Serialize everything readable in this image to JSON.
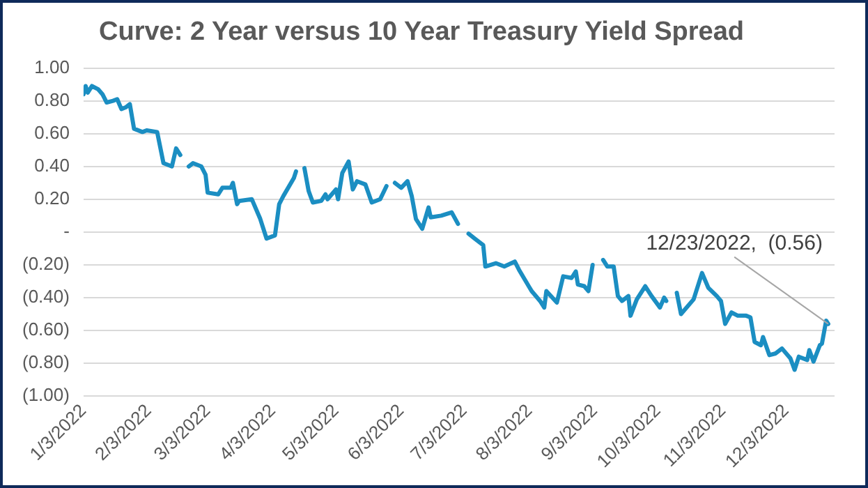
{
  "chart_data": {
    "type": "line",
    "title": "Curve: 2 Year versus 10 Year Treasury Yield Spread",
    "x": [
      "2022-01-03",
      "2022-01-04",
      "2022-01-05",
      "2022-01-07",
      "2022-01-10",
      "2022-01-12",
      "2022-01-14",
      "2022-01-17",
      "2022-01-19",
      "2022-01-21",
      "2022-01-23",
      "2022-01-25",
      "2022-01-27",
      "2022-01-31",
      "2022-02-02",
      "2022-02-07",
      "2022-02-10",
      "2022-02-14",
      "2022-02-16",
      "2022-02-18",
      "2022-02-21",
      "2022-02-22",
      "2022-02-24",
      "2022-02-28",
      "2022-03-02",
      "2022-03-03",
      "2022-03-08",
      "2022-03-10",
      "2022-03-14",
      "2022-03-15",
      "2022-03-17",
      "2022-03-18",
      "2022-03-24",
      "2022-03-28",
      "2022-03-31",
      "2022-04-04",
      "2022-04-06",
      "2022-04-08",
      "2022-04-13",
      "2022-04-14",
      "2022-04-15",
      "2022-04-18",
      "2022-04-20",
      "2022-04-22",
      "2022-04-26",
      "2022-04-28",
      "2022-04-29",
      "2022-05-03",
      "2022-05-04",
      "2022-05-06",
      "2022-05-09",
      "2022-05-11",
      "2022-05-13",
      "2022-05-17",
      "2022-05-20",
      "2022-05-24",
      "2022-05-27",
      "2022-05-30",
      "2022-05-31",
      "2022-06-03",
      "2022-06-06",
      "2022-06-08",
      "2022-06-10",
      "2022-06-13",
      "2022-06-16",
      "2022-06-17",
      "2022-06-22",
      "2022-06-27",
      "2022-06-30",
      "2022-07-04",
      "2022-07-05",
      "2022-07-08",
      "2022-07-12",
      "2022-07-13",
      "2022-07-18",
      "2022-07-22",
      "2022-07-27",
      "2022-07-29",
      "2022-08-04",
      "2022-08-08",
      "2022-08-10",
      "2022-08-11",
      "2022-08-16",
      "2022-08-19",
      "2022-08-23",
      "2022-08-25",
      "2022-08-26",
      "2022-08-29",
      "2022-08-31",
      "2022-09-02",
      "2022-09-05",
      "2022-09-07",
      "2022-09-09",
      "2022-09-12",
      "2022-09-14",
      "2022-09-16",
      "2022-09-19",
      "2022-09-20",
      "2022-09-23",
      "2022-09-27",
      "2022-09-30",
      "2022-10-04",
      "2022-10-06",
      "2022-10-07",
      "2022-10-10",
      "2022-10-12",
      "2022-10-14",
      "2022-10-20",
      "2022-10-24",
      "2022-10-27",
      "2022-10-31",
      "2022-11-02",
      "2022-11-04",
      "2022-11-07",
      "2022-11-10",
      "2022-11-14",
      "2022-11-16",
      "2022-11-18",
      "2022-11-21",
      "2022-11-22",
      "2022-11-25",
      "2022-11-28",
      "2022-12-01",
      "2022-12-05",
      "2022-12-07",
      "2022-12-09",
      "2022-12-13",
      "2022-12-14",
      "2022-12-16",
      "2022-12-19",
      "2022-12-20",
      "2022-12-22",
      "2022-12-23"
    ],
    "series": [
      {
        "color": "#1b8ec2",
        "values": [
          0.84,
          0.89,
          0.85,
          0.89,
          0.87,
          0.84,
          0.79,
          0.8,
          0.81,
          0.75,
          0.76,
          0.78,
          0.63,
          0.61,
          0.62,
          0.61,
          0.42,
          0.4,
          0.51,
          0.47,
          null,
          0.4,
          0.42,
          0.4,
          0.35,
          0.24,
          0.23,
          0.27,
          0.27,
          0.3,
          0.17,
          0.19,
          0.2,
          0.08,
          -0.04,
          -0.02,
          0.17,
          0.22,
          0.33,
          0.37,
          null,
          0.39,
          0.25,
          0.18,
          0.19,
          0.23,
          0.2,
          0.26,
          0.2,
          0.36,
          0.43,
          0.26,
          0.31,
          0.29,
          0.18,
          0.2,
          0.28,
          null,
          0.3,
          0.27,
          0.31,
          0.22,
          0.08,
          0.02,
          0.15,
          0.09,
          0.1,
          0.12,
          0.05,
          null,
          -0.01,
          -0.04,
          -0.08,
          -0.21,
          -0.19,
          -0.21,
          -0.18,
          -0.23,
          -0.36,
          -0.42,
          -0.46,
          -0.36,
          -0.43,
          -0.27,
          -0.28,
          -0.24,
          -0.32,
          -0.33,
          -0.36,
          -0.2,
          null,
          -0.17,
          -0.21,
          -0.21,
          -0.39,
          -0.42,
          -0.39,
          -0.51,
          -0.41,
          -0.33,
          -0.39,
          -0.46,
          -0.4,
          -0.42,
          null,
          -0.37,
          -0.5,
          -0.41,
          -0.25,
          -0.34,
          -0.39,
          -0.42,
          -0.56,
          -0.49,
          -0.51,
          -0.51,
          -0.52,
          -0.67,
          -0.69,
          -0.64,
          -0.75,
          -0.74,
          -0.71,
          -0.77,
          -0.84,
          -0.76,
          -0.78,
          -0.72,
          -0.79,
          -0.69,
          -0.68,
          -0.54,
          -0.56
        ]
      }
    ],
    "xlim": [
      "2022-01-03",
      "2022-12-26"
    ],
    "xticks": [
      {
        "value": "2022-01-03",
        "label": "1/3/2022"
      },
      {
        "value": "2022-02-03",
        "label": "2/3/2022"
      },
      {
        "value": "2022-03-03",
        "label": "3/3/2022"
      },
      {
        "value": "2022-04-03",
        "label": "4/3/2022"
      },
      {
        "value": "2022-05-03",
        "label": "5/3/2022"
      },
      {
        "value": "2022-06-03",
        "label": "6/3/2022"
      },
      {
        "value": "2022-07-03",
        "label": "7/3/2022"
      },
      {
        "value": "2022-08-03",
        "label": "8/3/2022"
      },
      {
        "value": "2022-09-03",
        "label": "9/3/2022"
      },
      {
        "value": "2022-10-03",
        "label": "10/3/2022"
      },
      {
        "value": "2022-11-03",
        "label": "11/3/2022"
      },
      {
        "value": "2022-12-03",
        "label": "12/3/2022"
      }
    ],
    "ylim": [
      -1,
      1
    ],
    "yticks": [
      {
        "value": -1,
        "label": "(1.00)"
      },
      {
        "value": -0.8,
        "label": "(0.80)"
      },
      {
        "value": -0.6,
        "label": "(0.60)"
      },
      {
        "value": -0.4,
        "label": "(0.40)"
      },
      {
        "value": -0.2,
        "label": "(0.20)"
      },
      {
        "value": 0,
        "label": "-"
      },
      {
        "value": 0.2,
        "label": "0.20"
      },
      {
        "value": 0.4,
        "label": "0.40"
      },
      {
        "value": 0.6,
        "label": "0.60"
      },
      {
        "value": 0.8,
        "label": "0.80"
      },
      {
        "value": 1,
        "label": "1.00"
      }
    ],
    "annotations": [
      {
        "text": "12/23/2022,  (0.56)",
        "x": "2022-12-23",
        "y": -0.56
      }
    ],
    "grid": "y",
    "legend": false,
    "marker": "none",
    "line_style": "solid"
  }
}
